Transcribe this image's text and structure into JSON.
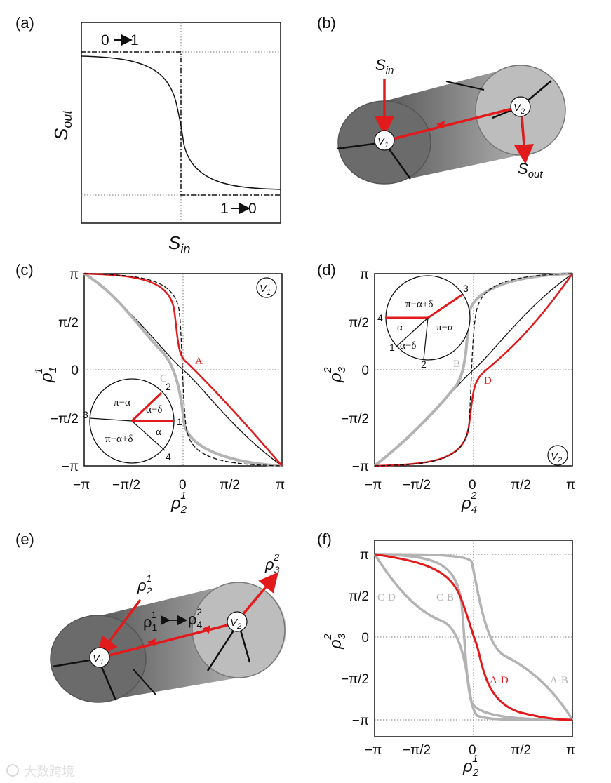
{
  "watermark": "大数跨境",
  "panels": {
    "a": {
      "tag": "(a)",
      "xlabel": "S",
      "xlabel_sub": "in",
      "ylabel": "S",
      "ylabel_sub": "out",
      "label_01": "0",
      "label_10": "1",
      "label_10_to": "0",
      "label_01_to": "1"
    },
    "b": {
      "tag": "(b)",
      "s_in": "S",
      "s_in_sub": "in",
      "s_out": "S",
      "s_out_sub": "out",
      "v1": "V",
      "v1_sub": "1",
      "v2": "V",
      "v2_sub": "2"
    },
    "c": {
      "tag": "(c)",
      "node": "V",
      "node_sub": "1",
      "curve_A": "A",
      "curve_C": "C",
      "xlabel": "ρ",
      "xlabel_sub": "2",
      "xlabel_sup": "1",
      "ylabel": "ρ",
      "ylabel_sub": "1",
      "ylabel_sup": "1",
      "inset": {
        "pi_minus_alpha": "π−α",
        "alpha_minus_delta": "α−δ",
        "alpha": "α",
        "pi_minus_alpha_plus_delta": "π−α+δ",
        "n1": "1",
        "n2": "2",
        "n3": "3",
        "n4": "4"
      }
    },
    "d": {
      "tag": "(d)",
      "node": "V",
      "node_sub": "2",
      "curve_B": "B",
      "curve_D": "D",
      "xlabel": "ρ",
      "xlabel_sub": "4",
      "xlabel_sup": "2",
      "ylabel": "ρ",
      "ylabel_sub": "3",
      "ylabel_sup": "2",
      "inset": {
        "pi_minus_alpha_plus_delta": "π−α+δ",
        "alpha": "α",
        "pi_minus_alpha": "π−α",
        "alpha_minus_delta": "α−δ",
        "n1": "1",
        "n2": "2",
        "n3": "3",
        "n4": "4"
      }
    },
    "e": {
      "tag": "(e)",
      "v1": "V",
      "v1_sub": "1",
      "v2": "V",
      "v2_sub": "2",
      "rho21": "ρ",
      "rho21_sub": "2",
      "rho21_sup": "1",
      "rho11": "ρ",
      "rho11_sub": "1",
      "rho11_sup": "1",
      "rho42": "ρ",
      "rho42_sub": "4",
      "rho42_sup": "2",
      "rho32": "ρ",
      "rho32_sub": "3",
      "rho32_sup": "2"
    },
    "f": {
      "tag": "(f)",
      "curve_CD": "C-D",
      "curve_CB": "C-B",
      "curve_AD": "A-D",
      "curve_AB": "A-B",
      "xlabel": "ρ",
      "xlabel_sub": "2",
      "xlabel_sup": "1",
      "ylabel": "ρ",
      "ylabel_sub": "3",
      "ylabel_sup": "2"
    }
  },
  "x_ticks": [
    "−π",
    "−π/2",
    "0",
    "π/2",
    "π"
  ],
  "y_ticks": [
    "π",
    "π/2",
    "0",
    "−π/2",
    "−π"
  ],
  "colors": {
    "red": "#e31a1c",
    "gray": "#b3b3b3",
    "black": "#111111"
  }
}
